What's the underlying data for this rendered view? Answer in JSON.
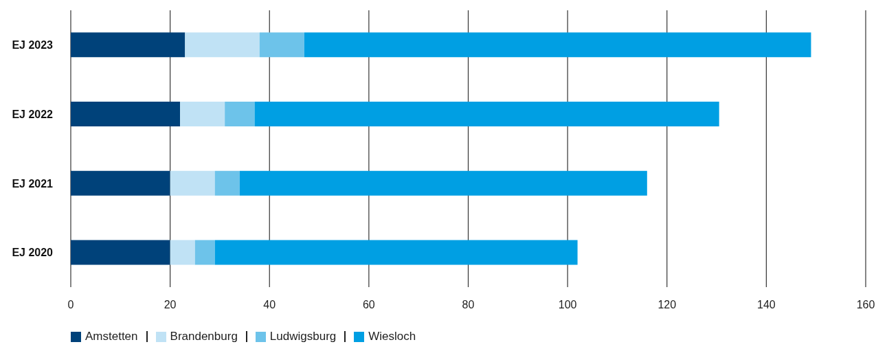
{
  "chart_data": {
    "type": "bar",
    "orientation": "horizontal",
    "stacked": true,
    "categories": [
      "EJ 2023",
      "EJ 2022",
      "EJ 2021",
      "EJ 2020"
    ],
    "series": [
      {
        "name": "Amstetten",
        "color": "#00427a",
        "values": [
          23,
          22,
          20,
          20
        ]
      },
      {
        "name": "Brandenburg",
        "color": "#c0e2f5",
        "values": [
          15,
          9,
          9,
          5
        ]
      },
      {
        "name": "Ludwigsburg",
        "color": "#6dc3ea",
        "values": [
          9,
          6,
          5,
          4
        ]
      },
      {
        "name": "Wiesloch",
        "color": "#009fe3",
        "values": [
          102,
          93.5,
          82,
          73
        ]
      }
    ],
    "xlim": [
      0,
      160
    ],
    "xticks": [
      0,
      20,
      40,
      60,
      80,
      100,
      120,
      140,
      160
    ],
    "grid": "x",
    "legend": "bottom left"
  }
}
